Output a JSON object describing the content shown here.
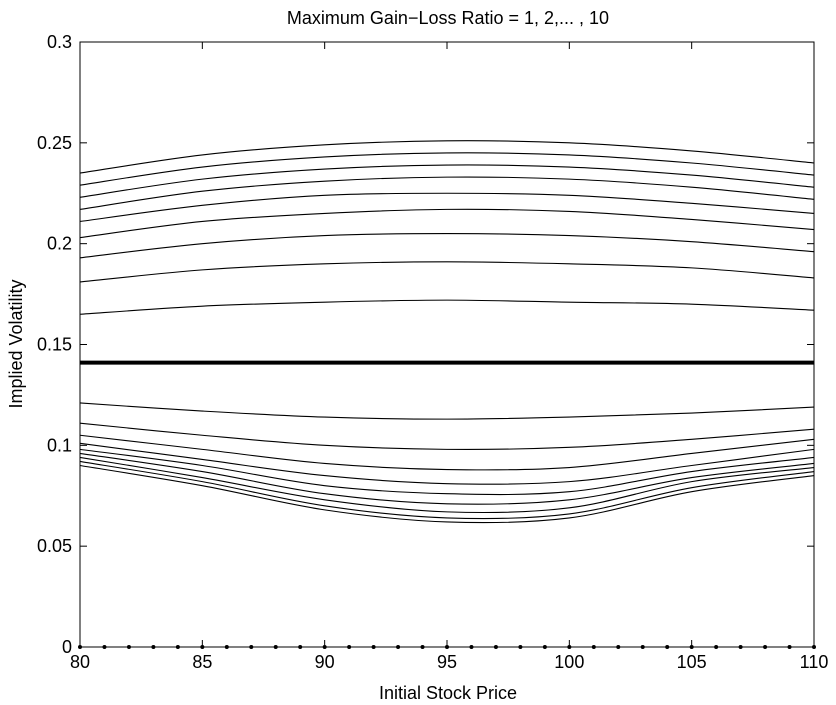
{
  "chart_data": {
    "type": "line",
    "title": "Maximum Gain−Loss Ratio = 1, 2,... , 10",
    "xlabel": "Initial Stock Price",
    "ylabel": "Implied Volatility",
    "xlim": [
      80,
      110
    ],
    "ylim": [
      0,
      0.3
    ],
    "xticks": [
      80,
      85,
      90,
      95,
      100,
      105,
      110
    ],
    "xtick_labels": [
      "80",
      "85",
      "90",
      "95",
      "100",
      "105",
      "110"
    ],
    "yticks": [
      0,
      0.05,
      0.1,
      0.15,
      0.2,
      0.25,
      0.3
    ],
    "ytick_labels": [
      "0",
      "0.05",
      "0.1",
      "0.15",
      "0.2",
      "0.25",
      "0.3"
    ],
    "grid": false,
    "legend": "none",
    "line_color": "#000000",
    "x": [
      80,
      85,
      90,
      95,
      100,
      105,
      110
    ],
    "reference_line": {
      "y": 0.141,
      "style": "bold"
    },
    "upper_series": [
      {
        "values": [
          0.235,
          0.244,
          0.249,
          0.251,
          0.25,
          0.246,
          0.24
        ]
      },
      {
        "values": [
          0.229,
          0.238,
          0.243,
          0.245,
          0.244,
          0.24,
          0.234
        ]
      },
      {
        "values": [
          0.223,
          0.232,
          0.237,
          0.239,
          0.238,
          0.234,
          0.228
        ]
      },
      {
        "values": [
          0.217,
          0.226,
          0.231,
          0.233,
          0.232,
          0.228,
          0.222
        ]
      },
      {
        "values": [
          0.211,
          0.219,
          0.224,
          0.225,
          0.224,
          0.22,
          0.215
        ]
      },
      {
        "values": [
          0.203,
          0.211,
          0.215,
          0.217,
          0.216,
          0.212,
          0.207
        ]
      },
      {
        "values": [
          0.193,
          0.2,
          0.204,
          0.205,
          0.204,
          0.201,
          0.196
        ]
      },
      {
        "values": [
          0.181,
          0.187,
          0.19,
          0.191,
          0.19,
          0.188,
          0.183
        ]
      },
      {
        "values": [
          0.165,
          0.169,
          0.171,
          0.172,
          0.171,
          0.17,
          0.167
        ]
      }
    ],
    "lower_series": [
      {
        "values": [
          0.121,
          0.117,
          0.114,
          0.113,
          0.114,
          0.116,
          0.119
        ]
      },
      {
        "values": [
          0.111,
          0.105,
          0.1,
          0.098,
          0.099,
          0.103,
          0.108
        ]
      },
      {
        "values": [
          0.105,
          0.098,
          0.091,
          0.088,
          0.089,
          0.096,
          0.103
        ]
      },
      {
        "values": [
          0.101,
          0.093,
          0.085,
          0.081,
          0.082,
          0.09,
          0.098
        ]
      },
      {
        "values": [
          0.098,
          0.09,
          0.08,
          0.076,
          0.077,
          0.087,
          0.094
        ]
      },
      {
        "values": [
          0.096,
          0.087,
          0.076,
          0.071,
          0.073,
          0.084,
          0.091
        ]
      },
      {
        "values": [
          0.094,
          0.084,
          0.073,
          0.067,
          0.069,
          0.082,
          0.089
        ]
      },
      {
        "values": [
          0.092,
          0.082,
          0.07,
          0.064,
          0.066,
          0.079,
          0.087
        ]
      },
      {
        "values": [
          0.09,
          0.08,
          0.068,
          0.062,
          0.064,
          0.077,
          0.085
        ]
      }
    ],
    "baseline_markers": {
      "y": 0,
      "x_start": 80,
      "x_end": 110,
      "step": 1
    }
  }
}
